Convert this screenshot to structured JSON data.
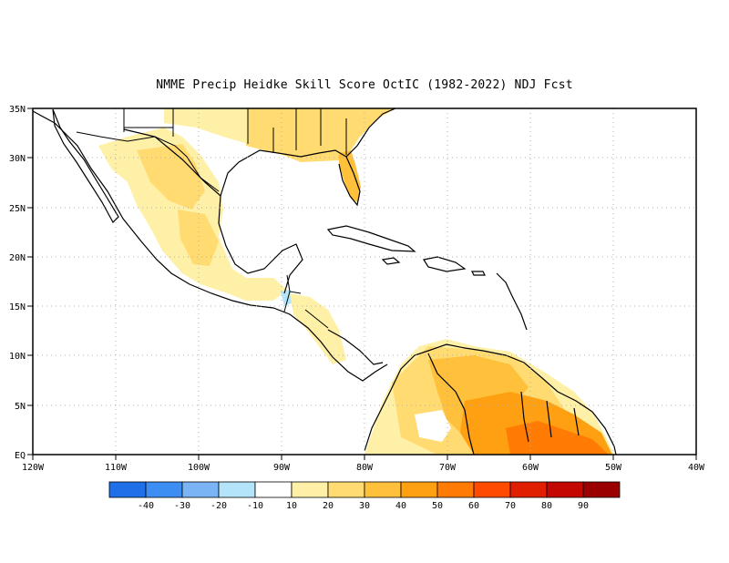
{
  "title": "NMME Precip Heidke Skill Score OctIC (1982-2022) NDJ Fcst",
  "axes": {
    "lon_labels": [
      "120W",
      "110W",
      "100W",
      "90W",
      "80W",
      "70W",
      "60W",
      "50W",
      "40W"
    ],
    "lat_labels": [
      "35N",
      "30N",
      "25N",
      "20N",
      "15N",
      "10N",
      "5N",
      "EQ"
    ]
  },
  "colorbar": {
    "levels": [
      "-40",
      "-30",
      "-20",
      "-10",
      "10",
      "20",
      "30",
      "40",
      "50",
      "60",
      "70",
      "80",
      "90"
    ],
    "colors": [
      "#1f6fe8",
      "#3d8ef2",
      "#7ab4f5",
      "#b4e4fa",
      "#ffffff",
      "#fff0a8",
      "#ffdb72",
      "#ffc13c",
      "#ff9f12",
      "#ff7b04",
      "#ff4a00",
      "#e01f00",
      "#c20800",
      "#9a0000"
    ]
  },
  "land": {
    "ocean_color": "#ffffff",
    "skill_colors": {
      "light": "#fff0a8",
      "medium": "#ffdb72",
      "strong": "#ffc13c",
      "orange": "#ff9f12",
      "deep": "#ff7b04",
      "blue": "#b4e4fa"
    }
  }
}
